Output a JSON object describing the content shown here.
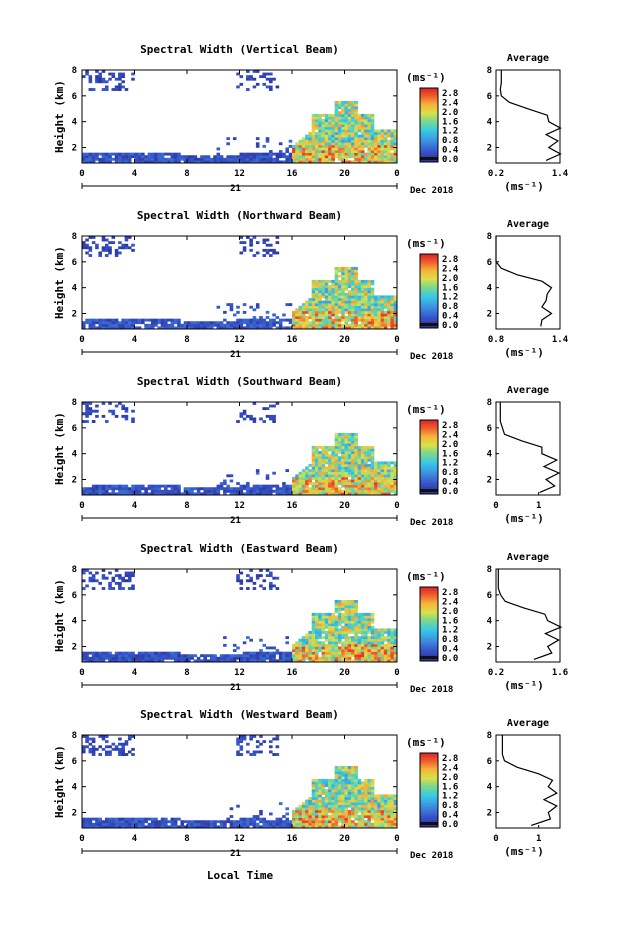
{
  "figure": {
    "xlabel_bottom": "Local Time",
    "date_label": "Dec 2018",
    "day_label": "21",
    "cbar_unit": "(ms⁻¹)",
    "avg_title": "Average",
    "avg_xlabel": "(ms⁻¹)"
  },
  "chart_data": [
    {
      "type": "heatmap",
      "title": "Spectral Width (Vertical Beam)",
      "ylabel": "Height (km)",
      "xticks": [
        "0",
        "4",
        "8",
        "12",
        "16",
        "20",
        "0"
      ],
      "yticks": [
        "2",
        "4",
        "6",
        "8"
      ],
      "xlim": [
        0,
        24
      ],
      "ylim": [
        0.8,
        8
      ],
      "colorbar": {
        "ticks": [
          "2.8",
          "2.4",
          "2.0",
          "1.6",
          "1.2",
          "0.8",
          "0.4",
          "0.0"
        ],
        "range": [
          0,
          2.8
        ]
      },
      "average": {
        "xticks": [
          "0.2",
          "1.4"
        ],
        "yticks": [
          "2",
          "4",
          "6",
          "8"
        ],
        "xlim": [
          0.2,
          1.4
        ],
        "ylim": [
          0.8,
          8
        ],
        "height": [
          1.0,
          1.5,
          2.0,
          2.5,
          3.0,
          3.5,
          4.0,
          4.5,
          5.0,
          5.5,
          6.0,
          6.5,
          7.0,
          7.5,
          8.0
        ],
        "value": [
          1.2,
          1.35,
          1.25,
          1.3,
          1.2,
          1.35,
          1.25,
          1.1,
          0.8,
          0.45,
          0.3,
          0.28,
          0.3,
          0.3,
          0.3
        ]
      }
    },
    {
      "type": "heatmap",
      "title": "Spectral Width (Northward Beam)",
      "ylabel": "Height (km)",
      "xticks": [
        "0",
        "4",
        "8",
        "12",
        "16",
        "20",
        "0"
      ],
      "yticks": [
        "2",
        "4",
        "6",
        "8"
      ],
      "xlim": [
        0,
        24
      ],
      "ylim": [
        0.8,
        8
      ],
      "colorbar": {
        "ticks": [
          "2.8",
          "2.4",
          "2.0",
          "1.6",
          "1.2",
          "0.8",
          "0.4",
          "0.0"
        ],
        "range": [
          0,
          2.8
        ]
      },
      "average": {
        "xticks": [
          "0.8",
          "1.4"
        ],
        "yticks": [
          "2",
          "4",
          "6",
          "8"
        ],
        "xlim": [
          0.8,
          1.4
        ],
        "ylim": [
          0.8,
          8
        ],
        "height": [
          1.0,
          1.5,
          2.0,
          2.5,
          3.0,
          3.5,
          4.0,
          4.5,
          5.0,
          5.5,
          6.0,
          6.5,
          7.0,
          7.5,
          8.0
        ],
        "value": [
          1.25,
          1.2,
          1.35,
          1.2,
          1.3,
          1.25,
          1.35,
          1.2,
          1.0,
          0.85,
          0.8,
          0.8,
          0.8,
          0.8,
          0.8
        ]
      }
    },
    {
      "type": "heatmap",
      "title": "Spectral Width (Southward Beam)",
      "ylabel": "Height (km)",
      "xticks": [
        "0",
        "4",
        "8",
        "12",
        "16",
        "20",
        "0"
      ],
      "yticks": [
        "2",
        "4",
        "6",
        "8"
      ],
      "xlim": [
        0,
        24
      ],
      "ylim": [
        0.8,
        8
      ],
      "colorbar": {
        "ticks": [
          "2.8",
          "2.4",
          "2.0",
          "1.6",
          "1.2",
          "0.8",
          "0.4",
          "0.0"
        ],
        "range": [
          0,
          2.8
        ]
      },
      "average": {
        "xticks": [
          "0",
          "1"
        ],
        "yticks": [
          "2",
          "4",
          "6",
          "8"
        ],
        "xlim": [
          0,
          1.5
        ],
        "ylim": [
          0.8,
          8
        ],
        "height": [
          1.0,
          1.5,
          2.0,
          2.5,
          3.0,
          3.5,
          4.0,
          4.5,
          5.0,
          5.5,
          6.0,
          6.5,
          7.0,
          7.5,
          8.0
        ],
        "value": [
          1.1,
          1.3,
          1.25,
          1.4,
          1.2,
          1.35,
          1.15,
          1.0,
          0.6,
          0.2,
          0.15,
          0.1,
          0.1,
          0.1,
          0.1
        ]
      }
    },
    {
      "type": "heatmap",
      "title": "Spectral Width (Eastward Beam)",
      "ylabel": "Height (km)",
      "xticks": [
        "0",
        "4",
        "8",
        "12",
        "16",
        "20",
        "0"
      ],
      "yticks": [
        "2",
        "4",
        "6",
        "8"
      ],
      "xlim": [
        0,
        24
      ],
      "ylim": [
        0.8,
        8
      ],
      "colorbar": {
        "ticks": [
          "2.8",
          "2.4",
          "2.0",
          "1.6",
          "1.2",
          "0.8",
          "0.4",
          "0.0"
        ],
        "range": [
          0,
          2.8
        ]
      },
      "average": {
        "xticks": [
          "0.2",
          "1.6"
        ],
        "yticks": [
          "2",
          "4",
          "6",
          "8"
        ],
        "xlim": [
          0.2,
          1.6
        ],
        "ylim": [
          0.8,
          8
        ],
        "height": [
          1.0,
          1.5,
          2.0,
          2.5,
          3.0,
          3.5,
          4.0,
          4.5,
          5.0,
          5.5,
          6.0,
          6.5,
          7.0,
          7.5,
          8.0
        ],
        "value": [
          1.1,
          1.35,
          1.4,
          1.5,
          1.35,
          1.55,
          1.4,
          1.2,
          0.8,
          0.4,
          0.3,
          0.25,
          0.25,
          0.25,
          0.25
        ]
      }
    },
    {
      "type": "heatmap",
      "title": "Spectral Width (Westward Beam)",
      "ylabel": "Height (km)",
      "xticks": [
        "0",
        "4",
        "8",
        "12",
        "16",
        "20",
        "0"
      ],
      "yticks": [
        "2",
        "4",
        "6",
        "8"
      ],
      "xlim": [
        0,
        24
      ],
      "ylim": [
        0.8,
        8
      ],
      "colorbar": {
        "ticks": [
          "2.8",
          "2.4",
          "2.0",
          "1.6",
          "1.2",
          "0.8",
          "0.4",
          "0.0"
        ],
        "range": [
          0,
          2.8
        ]
      },
      "average": {
        "xticks": [
          "0",
          "1"
        ],
        "yticks": [
          "2",
          "4",
          "6",
          "8"
        ],
        "xlim": [
          0,
          1.5
        ],
        "ylim": [
          0.8,
          8
        ],
        "height": [
          1.0,
          1.5,
          2.0,
          2.5,
          3.0,
          3.5,
          4.0,
          4.5,
          5.0,
          5.5,
          6.0,
          6.5,
          7.0,
          7.5,
          8.0
        ],
        "value": [
          0.9,
          1.2,
          1.3,
          1.35,
          1.2,
          1.35,
          1.3,
          1.25,
          1.0,
          0.5,
          0.2,
          0.15,
          0.15,
          0.15,
          0.15
        ]
      }
    }
  ]
}
